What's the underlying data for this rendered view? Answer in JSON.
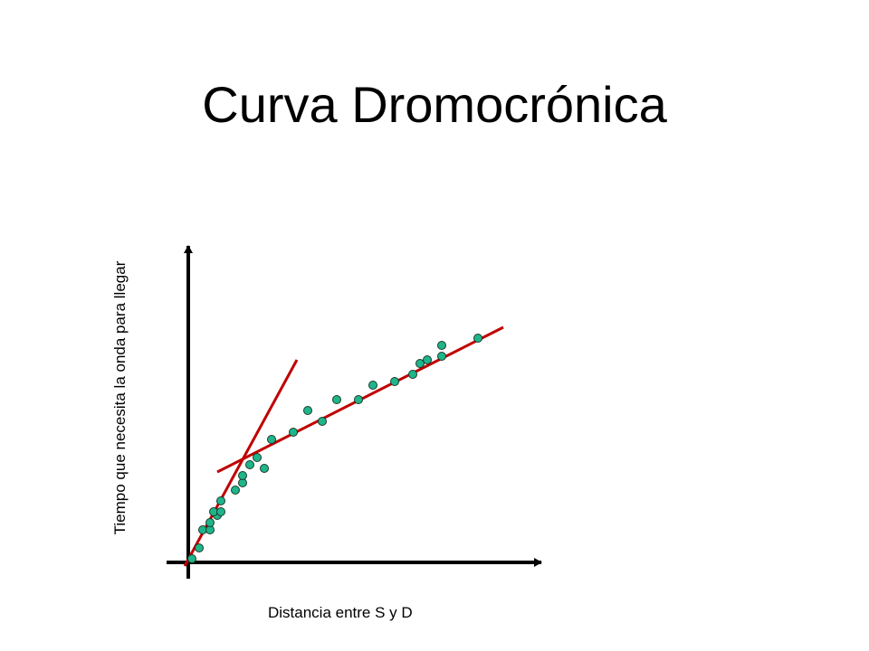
{
  "slide": {
    "title": "Curva Dromocrónica"
  },
  "chart_data": {
    "type": "scatter",
    "xlabel": "Distancia entre S y D",
    "ylabel": "Tiempo que necesita la onda para llegar",
    "colors": {
      "points": "#1fb58a",
      "point_outline": "#1a3a2a",
      "fit_lines": "#c00000",
      "axes": "#000000"
    },
    "series": [
      {
        "values": [
          [
            1,
            1
          ],
          [
            3,
            4
          ],
          [
            4,
            9
          ],
          [
            6,
            9
          ],
          [
            6,
            11
          ],
          [
            8,
            13
          ],
          [
            7,
            14
          ],
          [
            9,
            14
          ],
          [
            9,
            17
          ],
          [
            13,
            20
          ],
          [
            15,
            22
          ],
          [
            15,
            24
          ],
          [
            17,
            27
          ],
          [
            21,
            26
          ],
          [
            19,
            29
          ],
          [
            23,
            34
          ],
          [
            29,
            36
          ],
          [
            37,
            39
          ],
          [
            33,
            42
          ],
          [
            41,
            45
          ],
          [
            47,
            45
          ],
          [
            51,
            49
          ],
          [
            57,
            50
          ],
          [
            62,
            52
          ],
          [
            64,
            55
          ],
          [
            66,
            56
          ],
          [
            70,
            57
          ],
          [
            70,
            60
          ],
          [
            80,
            62
          ]
        ]
      }
    ],
    "fit_lines": [
      {
        "from": [
          -1,
          -1
        ],
        "to": [
          30,
          56
        ]
      },
      {
        "from": [
          8,
          25
        ],
        "to": [
          87,
          65
        ]
      }
    ],
    "xlim": [
      0,
      98
    ],
    "ylim": [
      0,
      88
    ]
  }
}
